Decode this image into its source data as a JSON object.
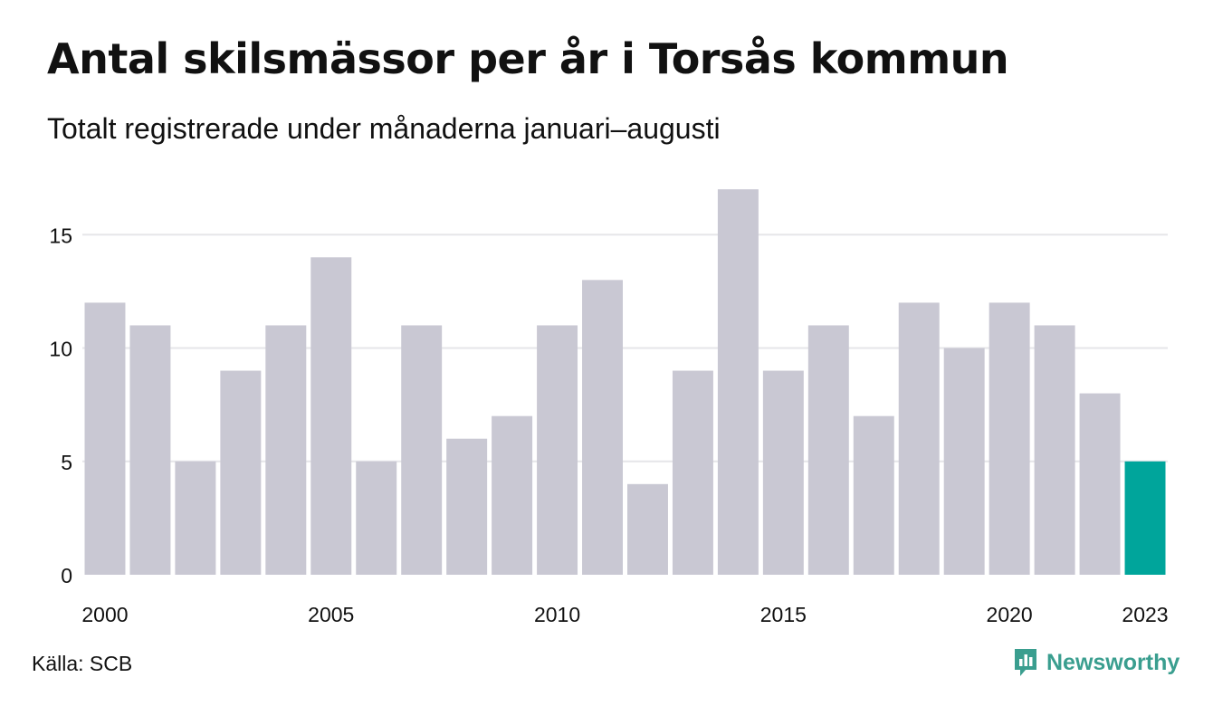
{
  "title": "Antal skilsmässor per år i Torsås kommun",
  "subtitle": "Totalt registrerade under månaderna januari–augusti",
  "source": "Källa: SCB",
  "brand": {
    "name": "Newsworthy",
    "icon": "newsworthy-logo-icon",
    "color": "#3a9e8f"
  },
  "colors": {
    "bar": "#c9c8d3",
    "highlight": "#00a59b",
    "grid": "#e6e6e9",
    "text": "#111111"
  },
  "chart_data": {
    "type": "bar",
    "title": "Antal skilsmässor per år i Torsås kommun",
    "subtitle": "Totalt registrerade under månaderna januari–augusti",
    "categories": [
      "2000",
      "2001",
      "2002",
      "2003",
      "2004",
      "2005",
      "2006",
      "2007",
      "2008",
      "2009",
      "2010",
      "2011",
      "2012",
      "2013",
      "2014",
      "2015",
      "2016",
      "2017",
      "2018",
      "2019",
      "2020",
      "2021",
      "2022",
      "2023"
    ],
    "values": [
      12,
      11,
      5,
      9,
      11,
      14,
      5,
      11,
      6,
      7,
      11,
      13,
      4,
      9,
      17,
      9,
      11,
      7,
      12,
      10,
      12,
      11,
      8,
      5
    ],
    "highlight_category": "2023",
    "xticks": [
      "2000",
      "2005",
      "2010",
      "2015",
      "2020",
      "2023"
    ],
    "yticks": [
      0,
      5,
      10,
      15
    ],
    "ylim": [
      0,
      17
    ],
    "xlabel": "",
    "ylabel": "",
    "grid": true,
    "legend": "none"
  }
}
